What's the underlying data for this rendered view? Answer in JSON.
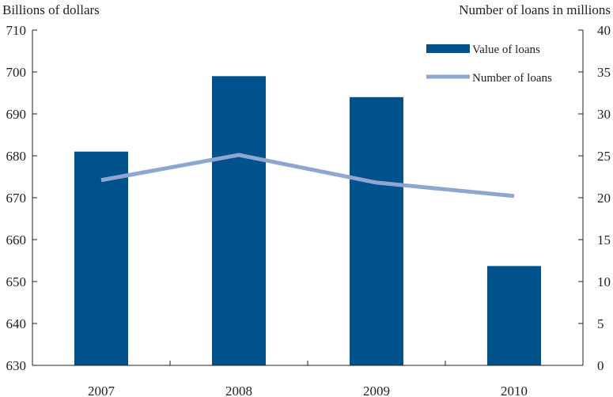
{
  "chart_data": {
    "type": "bar+line",
    "categories": [
      "2007",
      "2008",
      "2009",
      "2010"
    ],
    "left_axis": {
      "title": "Billions of dollars",
      "ylim": [
        630,
        710
      ],
      "ticks": [
        630,
        640,
        650,
        660,
        670,
        680,
        690,
        700,
        710
      ]
    },
    "right_axis": {
      "title": "Number of loans in millions",
      "ylim": [
        0,
        40
      ],
      "ticks": [
        0,
        5,
        10,
        15,
        20,
        25,
        30,
        35,
        40
      ]
    },
    "series": [
      {
        "name": "Value of loans",
        "type": "bar",
        "axis": "left",
        "values": [
          681,
          699,
          694,
          653.7
        ],
        "color": "#00528c"
      },
      {
        "name": "Number of loans",
        "type": "line",
        "axis": "right",
        "values": [
          22.1,
          25.1,
          21.8,
          20.2
        ],
        "color": "#8ea7d0"
      }
    ],
    "grid": false,
    "legend_position": "top-right"
  }
}
